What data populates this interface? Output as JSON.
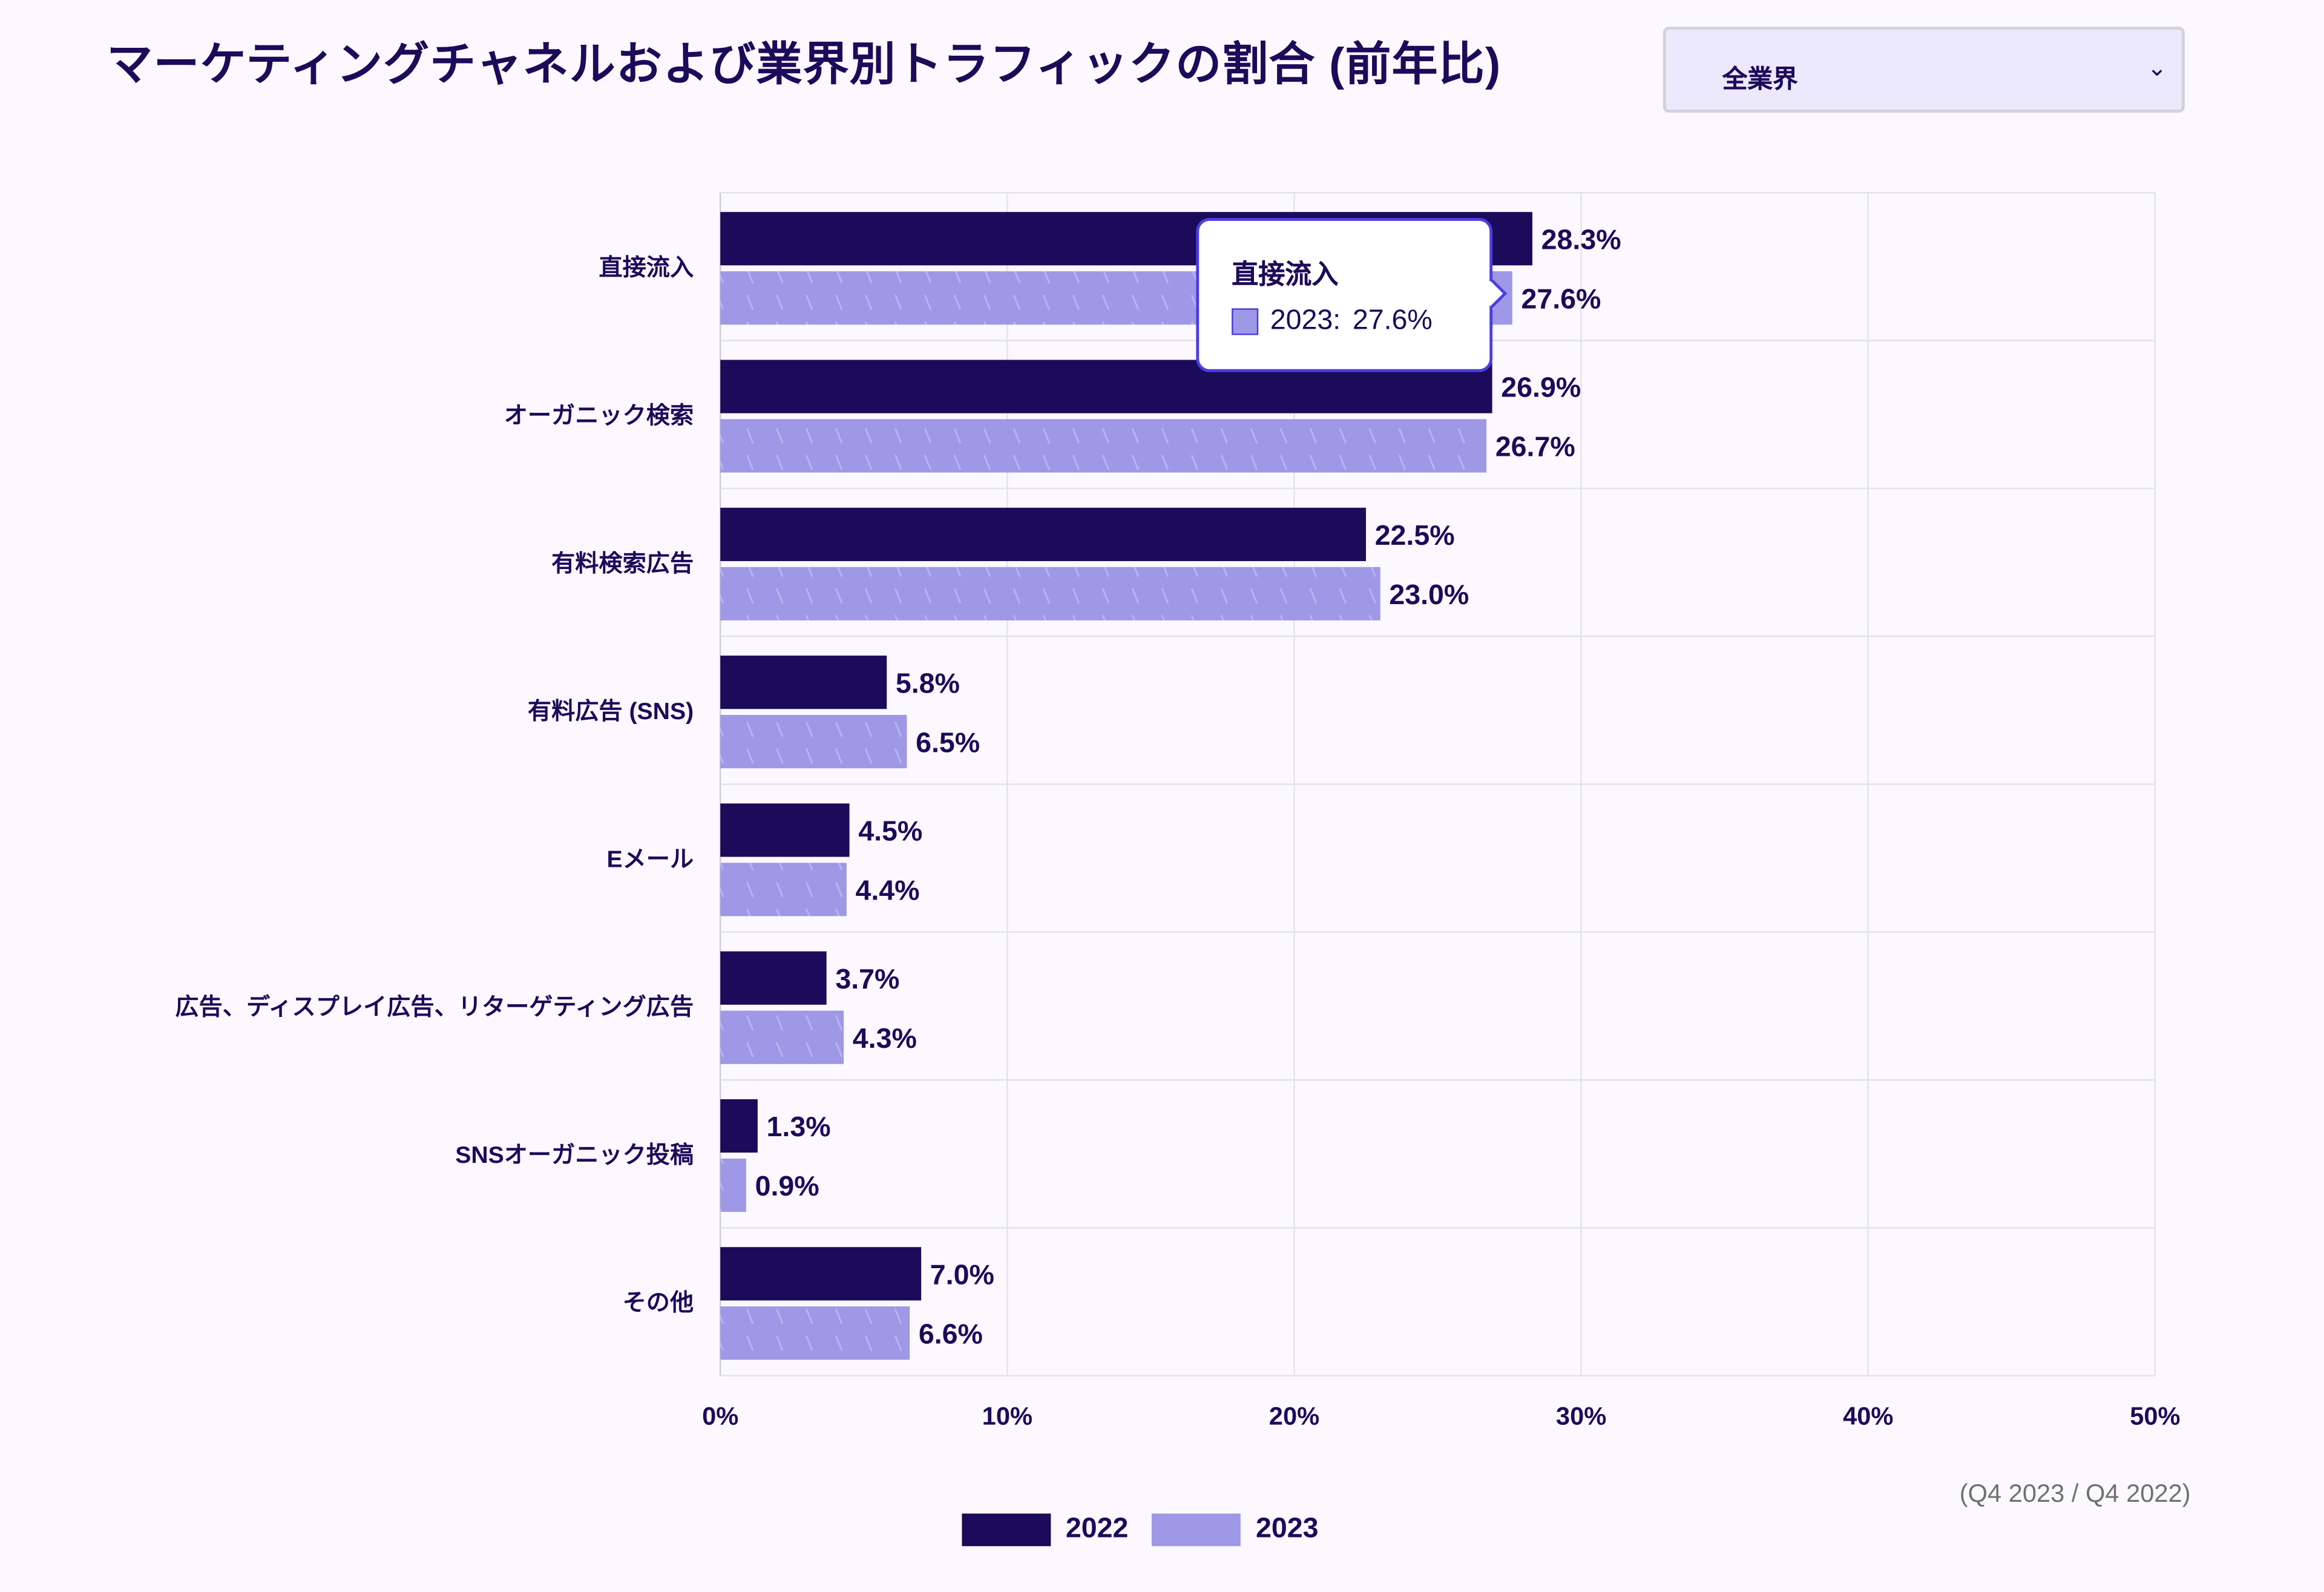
{
  "title": "マーケティングチャネルおよび業界別トラフィックの割合 (前年比)",
  "filter": {
    "selected": "全業界",
    "icon": "chevron-down-icon"
  },
  "note": "(Q4 2023 / Q4 2022)",
  "tooltip": {
    "category": "直接流入",
    "label": "2023:",
    "value": "27.6%"
  },
  "colors": {
    "2022": "#1c0a5a",
    "2023": "#9f98e6",
    "accent": "#4b3ee0",
    "text": "#1c0a5a"
  },
  "chart_data": {
    "type": "bar",
    "orientation": "horizontal",
    "categories": [
      "直接流入",
      "オーガニック検索",
      "有料検索広告",
      "有料広告 (SNS)",
      "Eメール",
      "広告、ディスプレイ広告、リターゲティング広告",
      "SNSオーガニック投稿",
      "その他"
    ],
    "series": [
      {
        "name": "2022",
        "values": [
          28.3,
          26.9,
          22.5,
          5.8,
          4.5,
          3.7,
          1.3,
          7.0
        ]
      },
      {
        "name": "2023",
        "values": [
          27.6,
          26.7,
          23.0,
          6.5,
          4.4,
          4.3,
          0.9,
          6.6
        ]
      }
    ],
    "xlim": [
      0,
      50
    ],
    "xticks": [
      "0%",
      "10%",
      "20%",
      "30%",
      "40%",
      "50%"
    ],
    "grid": true,
    "legend": "bottom",
    "unit": "%"
  }
}
